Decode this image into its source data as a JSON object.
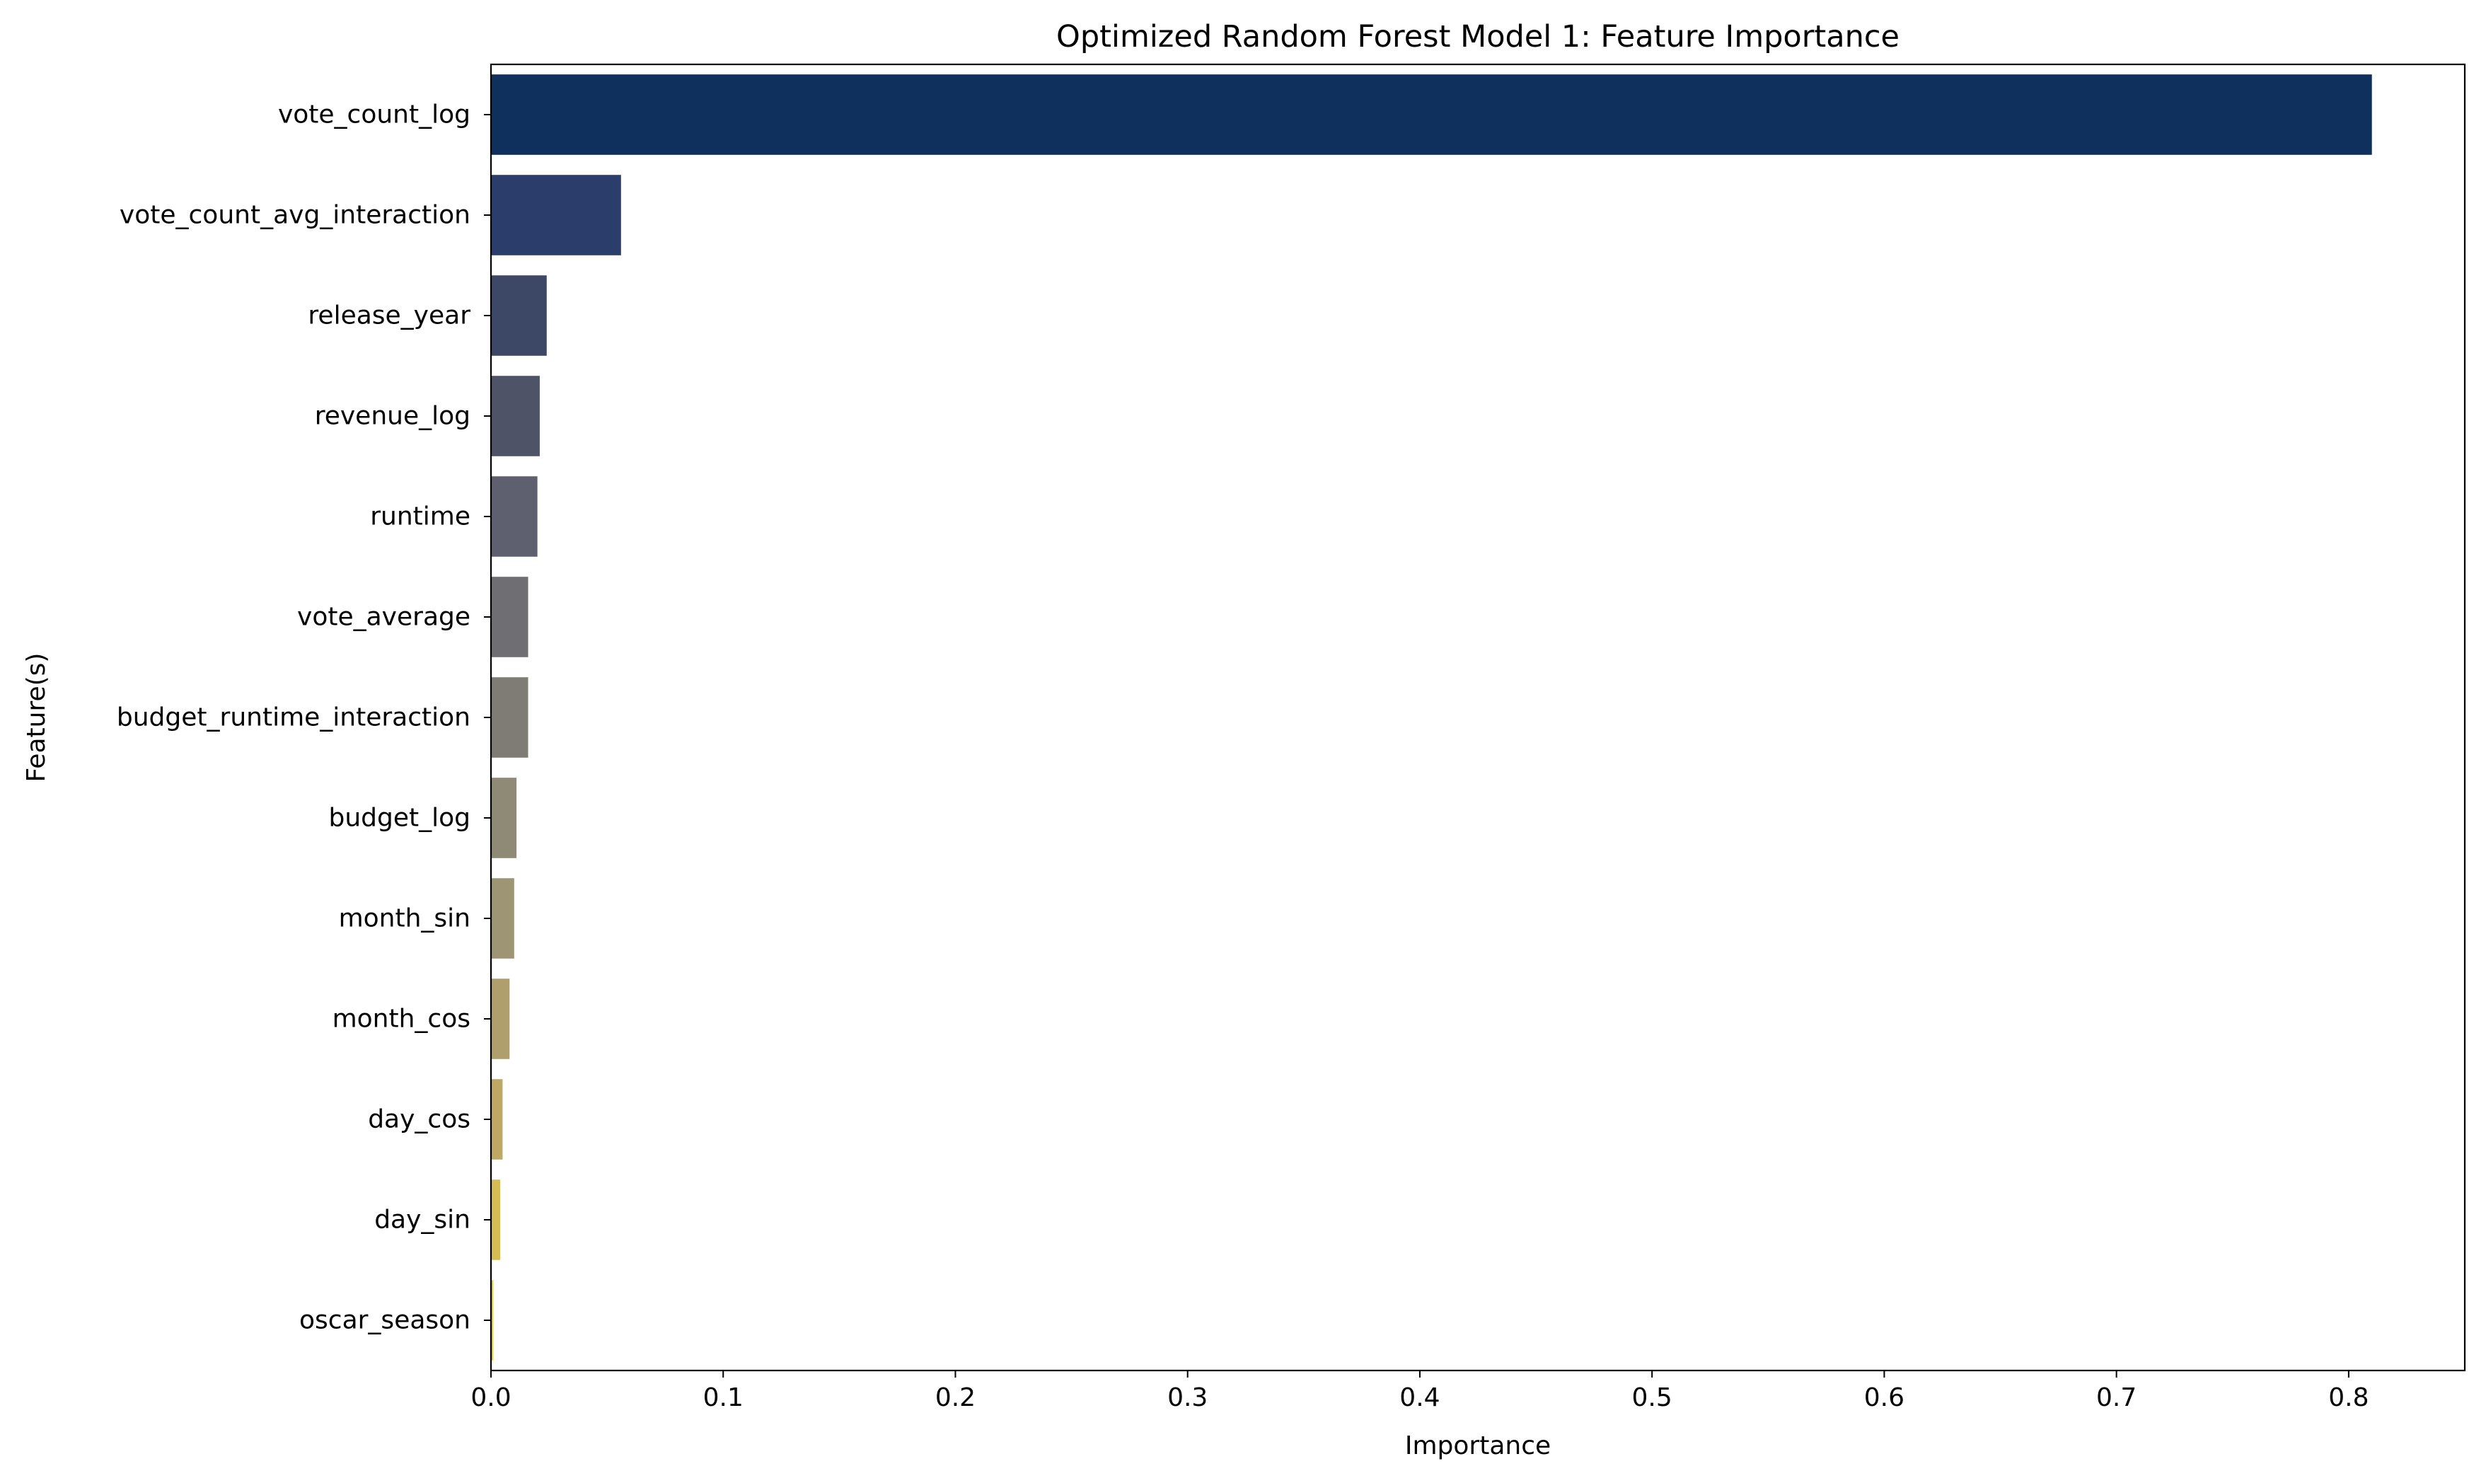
{
  "chart_data": {
    "type": "bar",
    "orientation": "horizontal",
    "title": "Optimized Random Forest Model 1: Feature Importance",
    "xlabel": "Importance",
    "ylabel": "Feature(s)",
    "xlim": [
      0.0,
      0.85
    ],
    "xticks": [
      0.0,
      0.1,
      0.2,
      0.3,
      0.4,
      0.5,
      0.6,
      0.7,
      0.8
    ],
    "xtick_labels": [
      "0.0",
      "0.1",
      "0.2",
      "0.3",
      "0.4",
      "0.5",
      "0.6",
      "0.7",
      "0.8"
    ],
    "grid": false,
    "legend": "none",
    "categories": [
      "vote_count_log",
      "vote_count_avg_interaction",
      "release_year",
      "revenue_log",
      "runtime",
      "vote_average",
      "budget_runtime_interaction",
      "budget_log",
      "month_sin",
      "month_cos",
      "day_cos",
      "day_sin",
      "oscar_season"
    ],
    "values": [
      0.81,
      0.056,
      0.024,
      0.021,
      0.02,
      0.016,
      0.016,
      0.011,
      0.01,
      0.008,
      0.005,
      0.004,
      0.001
    ],
    "colors": [
      "#0f2f5d",
      "#2a3d6b",
      "#3c4866",
      "#4e5367",
      "#5e6070",
      "#6f6e72",
      "#7f7c76",
      "#8f8a75",
      "#9e9574",
      "#ae9f6c",
      "#bea864",
      "#d5bc54",
      "#e8cf3e"
    ]
  }
}
